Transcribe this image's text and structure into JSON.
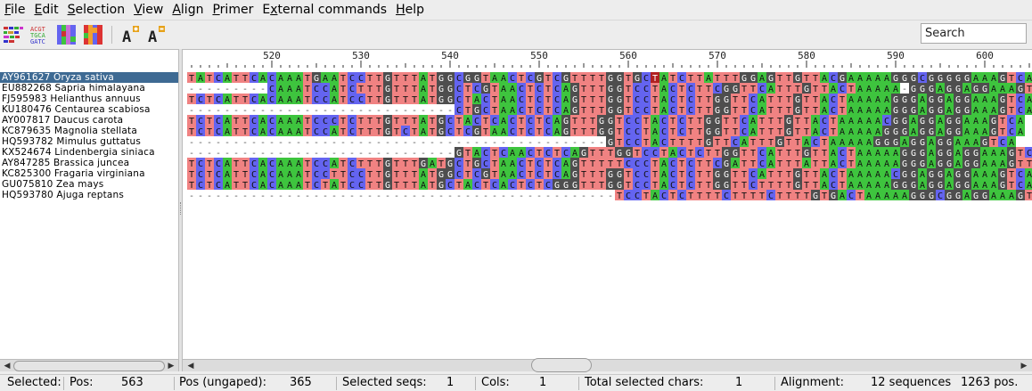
{
  "menu": [
    "File",
    "Edit",
    "Selection",
    "View",
    "Align",
    "Primer",
    "External commands",
    "Help"
  ],
  "menu_mnemonics": [
    "F",
    "E",
    "S",
    "V",
    "A",
    "P",
    "x",
    "H"
  ],
  "toolbar": {
    "buttons": [
      "color-scheme-clustal-icon",
      "color-scheme-text-icon",
      "color-scheme-nucleotide-icon",
      "color-scheme-hydrophobic-icon",
      "font-increase-icon",
      "font-decrease-icon"
    ],
    "search_placeholder": "Search"
  },
  "alignment": {
    "start_pos": 511,
    "end_pos": 605,
    "ruler_labels": [
      "520",
      "530",
      "540",
      "550",
      "560",
      "570",
      "580",
      "590",
      "600"
    ],
    "selected_index": 0,
    "selected_column": 563,
    "sequences": [
      {
        "name": "AY961627 Oryza sativa",
        "seq": "TATCATTCACAAATGAATCCTTGTTTATGGCGGTAACTCGTCGTTTTGGTGCTATCTTATTTGGAGTTGTTACGAAAAAGGGCGGGGGAAAGTCA"
      },
      {
        "name": "EU882268 Sapria himalayana",
        "seq": "---------CAAATCCATCTTTGTTTATGGCTCGTAACTCTCAGTTTGGTCCTACTCTTCGGTTCATTTGTTACTAAAAA-GGGAGGAGGAAAGTCA"
      },
      {
        "name": "FJ595983 Helianthus annuus",
        "seq": "TCTCATTCACAAATCCATCCTTGTTTATGGCTACTAACTCTCAGTTTGGTCCTACTCTTGGTTCATTTGTTACTAAAAAGGGAGGAGGAAAGTCA"
      },
      {
        "name": "KU180476 Centaurea scabiosa",
        "seq": "------------------------------CTGCTAACTCTCAGTTTGGTCCTACTCTTGGTTCATTTGTTACTAAAAAGGGAGGAGGAAAGTCA"
      },
      {
        "name": "AY007817 Daucus carota",
        "seq": "TCTCATTCACAAATCCCTCTTTGTTTATGCTACTCACTCTCAGTTTGGTCCTACTCTTGGTTCATTTGTTACTAAAAACGGAGGAGGAAAGTCA"
      },
      {
        "name": "KC879635 Magnolia stellata",
        "seq": "TCTCATTCACAAATCCATCTTTGTCTATGCTCGTAACTCTCAGTTTGGTCCTACTCTTGGTTCATTTGTTACTAAAAAGGGAGGAGGAAAGTCA"
      },
      {
        "name": "HQ593782 Mimulus guttatus",
        "seq": "-----------------------------------------------GTCCTACTTTTGTTCATTTGTTACTAAAAAGGGAGGAGGAAAGTCA"
      },
      {
        "name": "KX524674 Lindenbergia siniaca",
        "seq": "------------------------------GTACTCAACTCTCAGTTTGGTCCTACTCTTGGTTCATTTGTTACTAAAAAGGGAGGAGGAAAGTCA"
      },
      {
        "name": "AY847285 Brassica juncea",
        "seq": "TCTCATTCACAAATCCATCTTTGTTTGATGCTGCTAACTCTCAGTTTTTCCCTACTCTTCGATTCATTTATTACTAAAAAGGGAGGAGGAAAGTTA"
      },
      {
        "name": "KC825300 Fragaria virginiana",
        "seq": "TCTCATTCACAAATCCTTCCTTGTTTATGGCTCGTAACTCTCAGTTTGGTCCTACTCTTGGTTCATTTGTTACTAAAAACGGAGGAGGAAAGTCA"
      },
      {
        "name": "GU075810 Zea mays",
        "seq": "TCTCATTCACAAATCTATCCTTGTTTATGCTACTCACTCTCGGGTTTGGTCCTACTCTTGGTTCTTTTGTTACTAAAAAGGGAGGAGGAAAGTCA"
      },
      {
        "name": "HQ593780 Ajuga reptans",
        "seq": "------------------------------------------------TCCTACTCTTTTCTTTTCTTTTGTGACTAAAAAGGGCGGAGGAAAGTCA"
      }
    ]
  },
  "colors": {
    "A": "#3ec43e",
    "C": "#6464f0",
    "G": "#4e4e4e",
    "T": "#f08282",
    "selected_row": "#3e6a93"
  },
  "status": {
    "selected_label": "Selected:",
    "pos_label": "Pos:",
    "pos_value": "563",
    "ungaped_label": "Pos (ungaped):",
    "ungaped_value": "365",
    "selseqs_label": "Selected seqs:",
    "selseqs_value": "1",
    "cols_label": "Cols:",
    "cols_value": "1",
    "totalchars_label": "Total selected chars:",
    "totalchars_value": "1",
    "alignment_label": "Alignment:",
    "alignment_seqs": "12 sequences",
    "alignment_pos": "1263 pos."
  }
}
